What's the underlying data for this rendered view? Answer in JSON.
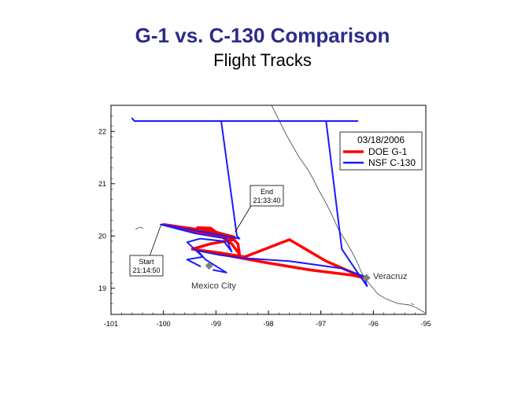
{
  "header": {
    "title": "G-1 vs. C-130 Comparison",
    "subtitle": "Flight Tracks"
  },
  "legend": {
    "date": "03/18/2006",
    "entries": [
      {
        "label": "DOE G-1",
        "color": "#ff0000"
      },
      {
        "label": "NSF C-130",
        "color": "#1a1aff"
      }
    ]
  },
  "annotations": {
    "start_label": "Start",
    "start_time": "21:14:50",
    "end_label": "End",
    "end_time": "21:33:40"
  },
  "places": [
    {
      "name": "Mexico City",
      "lon": -99.13,
      "lat": 19.43
    },
    {
      "name": "Veracruz",
      "lon": -96.13,
      "lat": 19.2
    }
  ],
  "axes": {
    "xlim": [
      -101,
      -95
    ],
    "ylim": [
      18.5,
      22.5
    ],
    "xticks": [
      "-101",
      "-100",
      "-99",
      "-98",
      "-97",
      "-96",
      "-95"
    ],
    "yticks": [
      "19",
      "20",
      "21",
      "22"
    ]
  },
  "chart_data": {
    "type": "line",
    "series": [
      {
        "name": "DOE G-1",
        "color": "#ff0000",
        "points": [
          [
            -99.25,
            19.72
          ],
          [
            -99.4,
            19.74
          ],
          [
            -98.95,
            19.68
          ],
          [
            -98.45,
            19.6
          ],
          [
            -97.6,
            19.93
          ],
          [
            -96.9,
            19.52
          ],
          [
            -96.15,
            19.19
          ],
          [
            -96.4,
            19.25
          ],
          [
            -97.2,
            19.35
          ],
          [
            -98.1,
            19.5
          ],
          [
            -98.95,
            19.66
          ],
          [
            -99.45,
            19.75
          ],
          [
            -99.1,
            19.85
          ],
          [
            -98.65,
            19.93
          ],
          [
            -98.8,
            19.98
          ],
          [
            -99.55,
            20.12
          ],
          [
            -100.0,
            20.22
          ],
          [
            -99.3,
            20.12
          ],
          [
            -98.7,
            19.97
          ],
          [
            -98.58,
            19.85
          ],
          [
            -98.55,
            19.65
          ],
          [
            -98.7,
            19.85
          ],
          [
            -99.1,
            20.15
          ],
          [
            -99.35,
            20.16
          ],
          [
            -99.1,
            20.1
          ],
          [
            -98.65,
            19.98
          ]
        ]
      },
      {
        "name": "NSF C-130",
        "color": "#1a1aff",
        "points": [
          [
            -99.05,
            19.35
          ],
          [
            -98.8,
            19.3
          ],
          [
            -99.2,
            19.55
          ],
          [
            -99.35,
            19.72
          ],
          [
            -98.95,
            19.64
          ],
          [
            -98.5,
            19.58
          ],
          [
            -97.6,
            19.52
          ],
          [
            -96.6,
            19.38
          ],
          [
            -96.18,
            19.23
          ],
          [
            -96.12,
            19.04
          ],
          [
            -96.3,
            19.3
          ],
          [
            -96.6,
            19.75
          ],
          [
            -96.9,
            22.2
          ],
          [
            -98.6,
            22.2
          ],
          [
            -100.55,
            22.2
          ],
          [
            -100.6,
            22.25
          ],
          [
            -100.55,
            22.2
          ],
          [
            -98.6,
            22.2
          ],
          [
            -96.3,
            22.2
          ],
          [
            -96.9,
            22.2
          ],
          [
            -98.9,
            22.2
          ],
          [
            -98.6,
            20.0
          ],
          [
            -98.55,
            19.95
          ],
          [
            -99.9,
            20.2
          ],
          [
            -100.05,
            20.22
          ],
          [
            -99.4,
            20.05
          ],
          [
            -98.8,
            19.95
          ],
          [
            -98.7,
            19.7
          ],
          [
            -98.85,
            19.9
          ],
          [
            -99.3,
            19.95
          ],
          [
            -99.55,
            19.88
          ],
          [
            -99.25,
            19.6
          ],
          [
            -99.55,
            19.55
          ],
          [
            -99.3,
            19.42
          ]
        ]
      }
    ],
    "xlim": [
      -101,
      -95
    ],
    "ylim": [
      18.5,
      22.5
    ]
  }
}
